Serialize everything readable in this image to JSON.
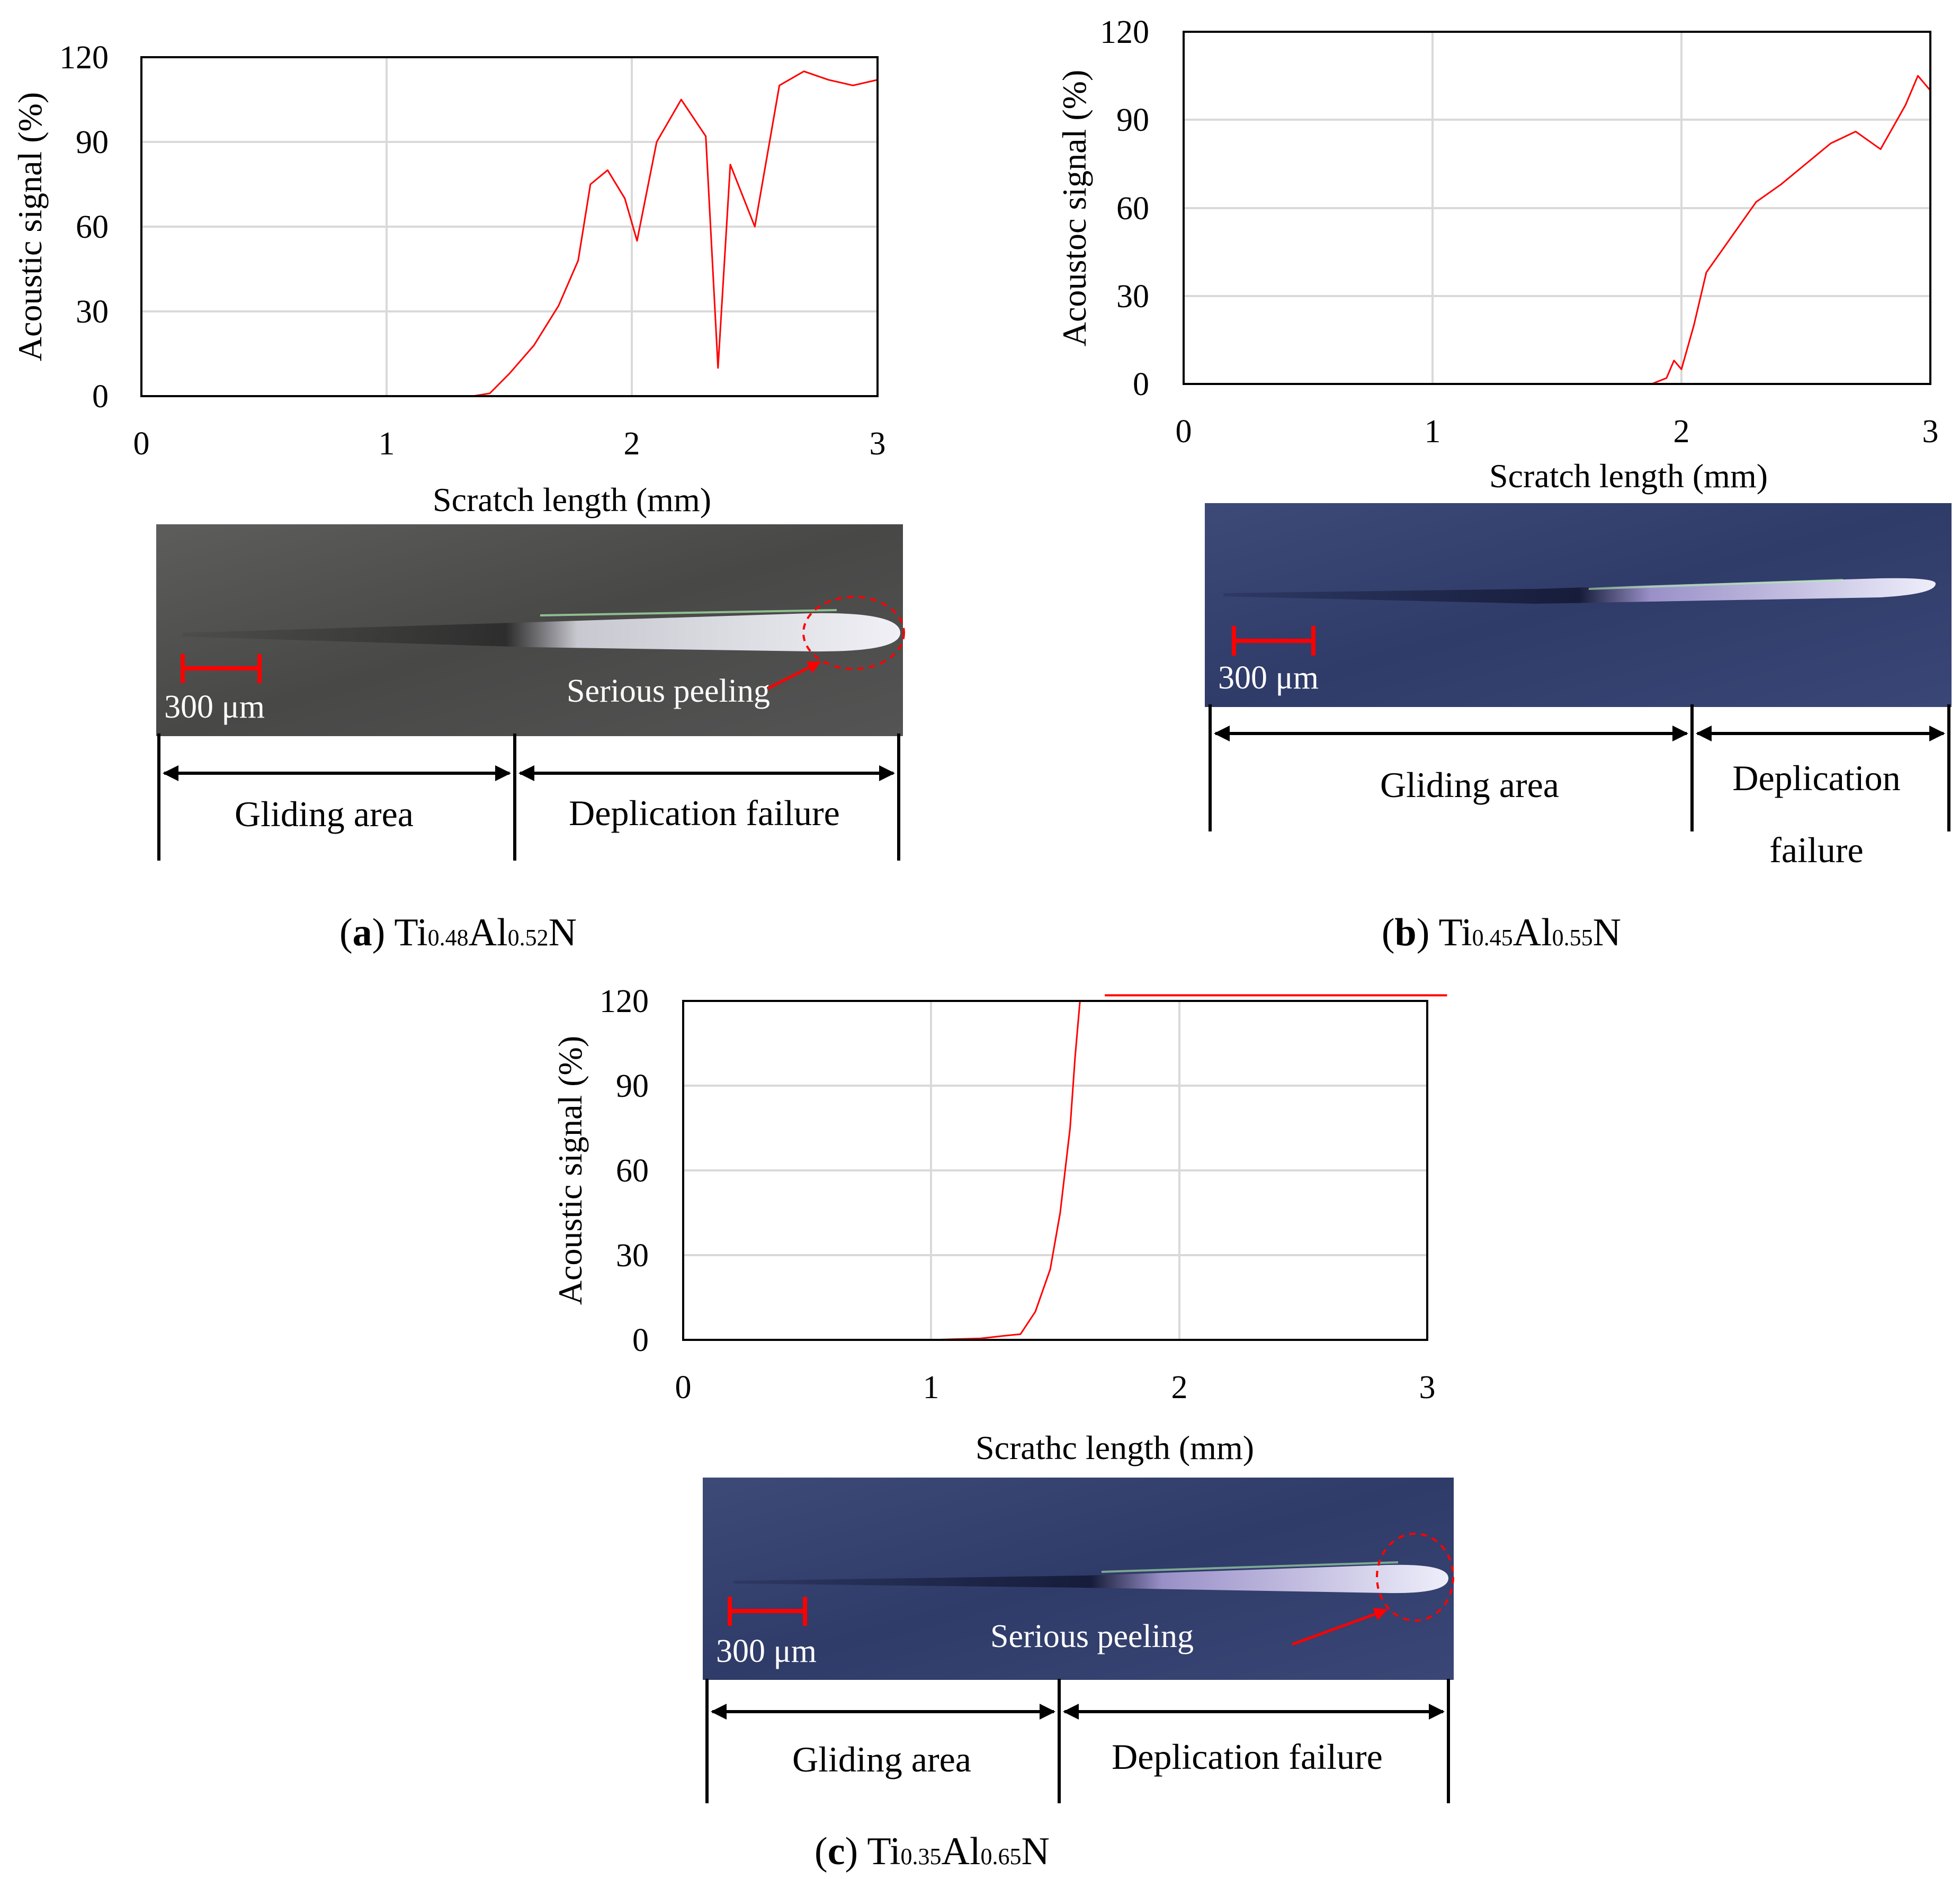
{
  "colors": {
    "signal": "#ff0000",
    "scale_bar": "#ff0000",
    "grid": "#d9d9d9"
  },
  "chart_data": [
    {
      "type": "line",
      "panel": "a",
      "caption": {
        "letter": "a",
        "ti": "0.48",
        "al": "0.52"
      },
      "xlabel": "Scratch length (mm)",
      "ylabel": "Acoustic signal (%)",
      "xlim": [
        0,
        3
      ],
      "ylim": [
        0,
        120
      ],
      "xticks": [
        "0",
        "1",
        "2",
        "3"
      ],
      "yticks": [
        "0",
        "30",
        "60",
        "90",
        "120"
      ],
      "grid": true,
      "series": [
        {
          "x": [
            0,
            1.0,
            1.35,
            1.42,
            1.5,
            1.6,
            1.7,
            1.78,
            1.83,
            1.9,
            1.97,
            2.02,
            2.1,
            2.2,
            2.3,
            2.35,
            2.4,
            2.5,
            2.6,
            2.7,
            2.8,
            2.9,
            3.0
          ],
          "y": [
            0,
            0,
            0,
            1,
            8,
            18,
            32,
            48,
            75,
            80,
            70,
            55,
            90,
            105,
            92,
            10,
            82,
            60,
            110,
            115,
            112,
            110,
            112
          ]
        }
      ],
      "photo": {
        "scale": "300 μm",
        "annotation": "Serious peeling",
        "regions": [
          "Gliding area",
          "Deplication failure"
        ]
      }
    },
    {
      "type": "line",
      "panel": "b",
      "caption": {
        "letter": "b",
        "ti": "0.45",
        "al": "0.55"
      },
      "xlabel": "Scratch length (mm)",
      "ylabel": "Acoustoc signal (%)",
      "xlim": [
        0,
        3
      ],
      "ylim": [
        0,
        120
      ],
      "xticks": [
        "0",
        "1",
        "2",
        "3"
      ],
      "yticks": [
        "0",
        "30",
        "60",
        "90",
        "120"
      ],
      "grid": true,
      "series": [
        {
          "x": [
            0,
            1.0,
            1.88,
            1.94,
            1.97,
            2.0,
            2.05,
            2.1,
            2.2,
            2.3,
            2.4,
            2.5,
            2.6,
            2.7,
            2.8,
            2.9,
            2.95,
            3.0
          ],
          "y": [
            0,
            0,
            0,
            2,
            8,
            5,
            20,
            38,
            50,
            62,
            68,
            75,
            82,
            86,
            80,
            95,
            105,
            100
          ]
        }
      ],
      "photo": {
        "scale": "300 μm",
        "annotation": "",
        "regions": [
          "Gliding area",
          "Deplication",
          "failure"
        ]
      }
    },
    {
      "type": "line",
      "panel": "c",
      "caption": {
        "letter": "c",
        "ti": "0.35",
        "al": "0.65"
      },
      "xlabel": "Scrathc length (mm)",
      "ylabel": "Acoustic signal (%)",
      "xlim": [
        0,
        3
      ],
      "ylim": [
        0,
        120
      ],
      "xticks": [
        "0",
        "1",
        "2",
        "3"
      ],
      "yticks": [
        "0",
        "30",
        "60",
        "90",
        "120"
      ],
      "grid": true,
      "series": [
        {
          "x": [
            0,
            1.0,
            1.2,
            1.3,
            1.36,
            1.42,
            1.48,
            1.52,
            1.56,
            1.58,
            1.6
          ],
          "y": [
            0,
            0,
            0.5,
            1.5,
            2,
            10,
            25,
            45,
            75,
            100,
            120
          ]
        }
      ],
      "saturation_line": {
        "x_start": 1.7,
        "x_end": 3.08,
        "y": 122
      },
      "photo": {
        "scale": "300 μm",
        "annotation": "Serious peeling",
        "regions": [
          "Gliding area",
          "Deplication failure"
        ]
      }
    }
  ]
}
